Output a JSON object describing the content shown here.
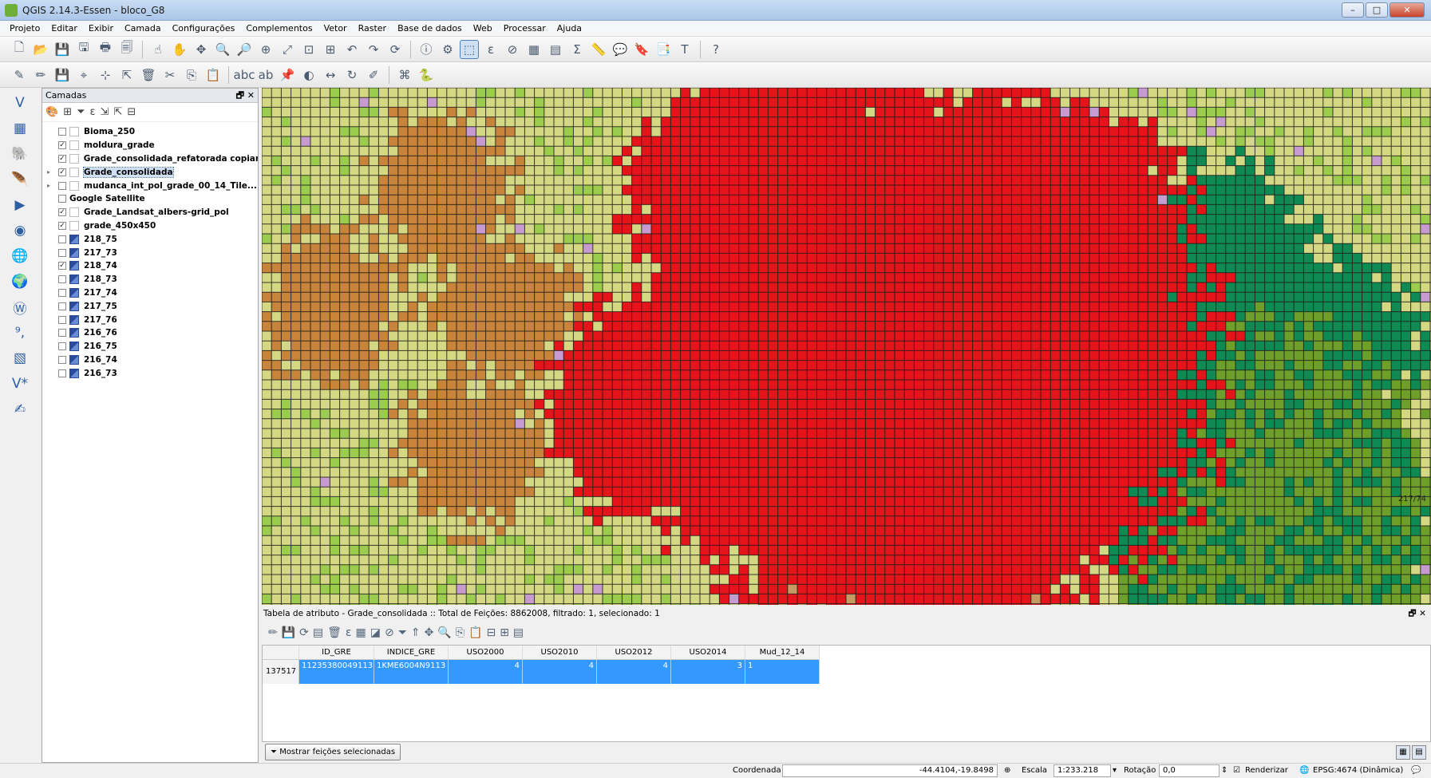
{
  "window": {
    "title": "QGIS 2.14.3-Essen - bloco_G8",
    "minimize": "–",
    "maximize": "□",
    "close": "✕"
  },
  "menu": [
    "Projeto",
    "Editar",
    "Exibir",
    "Camada",
    "Configurações",
    "Complementos",
    "Vetor",
    "Raster",
    "Base de dados",
    "Web",
    "Processar",
    "Ajuda"
  ],
  "layers_panel": {
    "title": "Camadas",
    "controls": "🗗 ✕",
    "layers": [
      {
        "name": "Bioma_250",
        "checked": false,
        "icon": "vector-polygon-icon"
      },
      {
        "name": "moldura_grade",
        "checked": true,
        "icon": "vector-polygon-icon"
      },
      {
        "name": "Grade_consolidada_refatorada copiar",
        "checked": true,
        "icon": "vector-polygon-icon"
      },
      {
        "name": "Grade_consolidada",
        "checked": true,
        "icon": "vector-polygon-icon",
        "selected": true,
        "expandable": true
      },
      {
        "name": "mudanca_int_pol_grade_00_14_Tile...",
        "checked": false,
        "icon": "vector-polygon-icon",
        "expandable": true
      },
      {
        "name": "Google Satellite",
        "checked": false,
        "icon": "group-icon",
        "group": true
      },
      {
        "name": "Grade_Landsat_albers-grid_pol",
        "checked": true,
        "icon": "vector-polygon-icon"
      },
      {
        "name": "grade_450x450",
        "checked": true,
        "icon": "vector-polygon-icon"
      },
      {
        "name": "218_75",
        "checked": false,
        "icon": "raster-icon"
      },
      {
        "name": "217_73",
        "checked": false,
        "icon": "raster-icon"
      },
      {
        "name": "218_74",
        "checked": true,
        "icon": "raster-icon"
      },
      {
        "name": "218_73",
        "checked": false,
        "icon": "raster-icon"
      },
      {
        "name": "217_74",
        "checked": false,
        "icon": "raster-icon"
      },
      {
        "name": "217_75",
        "checked": false,
        "icon": "raster-icon"
      },
      {
        "name": "217_76",
        "checked": false,
        "icon": "raster-icon"
      },
      {
        "name": "216_76",
        "checked": false,
        "icon": "raster-icon"
      },
      {
        "name": "216_75",
        "checked": false,
        "icon": "raster-icon"
      },
      {
        "name": "216_74",
        "checked": false,
        "icon": "raster-icon"
      },
      {
        "name": "216_73",
        "checked": false,
        "icon": "raster-icon"
      }
    ]
  },
  "map": {
    "corner_label": "217/74",
    "colors": {
      "agriculture": "#d5d883",
      "pasture": "#9ccc4e",
      "urban": "#e5141a",
      "forest": "#0f8a52",
      "savanna": "#6e9f2a",
      "exposed": "#c59b62",
      "bare": "#c8843a",
      "water": "#8ee0f0",
      "other": "#c79ad0",
      "grid": "#1a1a1a"
    }
  },
  "attribute_table": {
    "title": "Tabela de atributo - Grade_consolidada :: Total de Feições: 8862008, filtrado: 1, selecionado: 1",
    "controls": "🗗 ✕",
    "columns": [
      "ID_GRE",
      "INDICE_GRE",
      "USO2000",
      "USO2010",
      "USO2012",
      "USO2014",
      "Mud_12_14"
    ],
    "row_id": "137517",
    "row": [
      "11235380049113",
      "1KME6004N9113",
      "4",
      "4",
      "4",
      "3",
      "1"
    ],
    "show_button": "Mostrar feições selecionadas"
  },
  "status": {
    "coord_label": "Coordenada",
    "coord_value": "-44.4104,-19.8498",
    "scale_label": "Escala",
    "scale_value": "1:233.218",
    "rotation_label": "Rotação",
    "rotation_value": "0,0",
    "render_label": "Renderizar",
    "crs": "EPSG:4674 (Dinâmica)"
  }
}
